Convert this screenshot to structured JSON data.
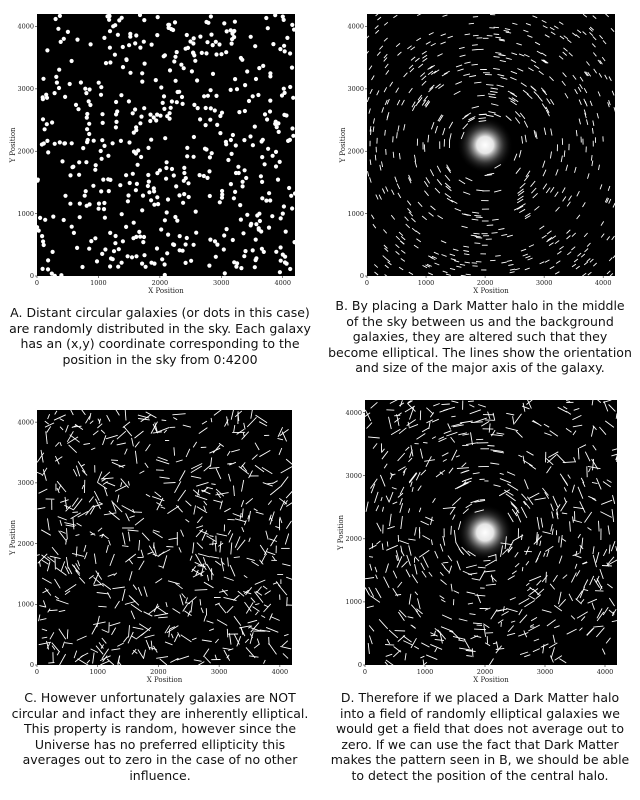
{
  "chart_data": [
    {
      "id": "A",
      "type": "scatter",
      "mark_style": "dots",
      "halo": false,
      "xlabel": "X Position",
      "ylabel": "Y Position",
      "xlim": [
        0,
        4200
      ],
      "ylim": [
        0,
        4200
      ],
      "xticks": [
        "0",
        "1000",
        "2000",
        "3000",
        "4000"
      ],
      "yticks": [
        "0",
        "1000",
        "2000",
        "3000",
        "4000"
      ],
      "caption": "A. Distant circular galaxies (or dots in this case) are randomly distributed in the sky. Each galaxy has an (x,y) coordinate corresponding to the position in the sky from 0:4200"
    },
    {
      "id": "B",
      "type": "scatter",
      "mark_style": "tangential-short",
      "halo": true,
      "halo_center": [
        2000,
        2100
      ],
      "xlabel": "X Position",
      "ylabel": "Y Position",
      "xlim": [
        0,
        4200
      ],
      "ylim": [
        0,
        4200
      ],
      "xticks": [
        "0",
        "1000",
        "2000",
        "3000",
        "4000"
      ],
      "yticks": [
        "0",
        "1000",
        "2000",
        "3000",
        "4000"
      ],
      "caption": "B. By placing a Dark Matter halo in the middle of the sky between us and the background galaxies, they are altered such that they become elliptical. The lines show the orientation and size of the major axis of the galaxy."
    },
    {
      "id": "C",
      "type": "scatter",
      "mark_style": "random-long",
      "halo": false,
      "xlabel": "X Position",
      "ylabel": "Y Position",
      "xlim": [
        0,
        4200
      ],
      "ylim": [
        0,
        4200
      ],
      "xticks": [
        "0",
        "1000",
        "2000",
        "3000",
        "4000"
      ],
      "yticks": [
        "0",
        "1000",
        "2000",
        "3000",
        "4000"
      ],
      "caption": "C. However unfortunately galaxies are NOT circular and infact they are inherently elliptical. This property is random, however since the Universe has no preferred ellipticity this averages out to zero in the case of no other influence."
    },
    {
      "id": "D",
      "type": "scatter",
      "mark_style": "random-plus-tangential",
      "halo": true,
      "halo_center": [
        2000,
        2100
      ],
      "xlabel": "X Position",
      "ylabel": "Y Position",
      "xlim": [
        0,
        4200
      ],
      "ylim": [
        0,
        4200
      ],
      "xticks": [
        "0",
        "1000",
        "2000",
        "3000",
        "4000"
      ],
      "yticks": [
        "0",
        "1000",
        "2000",
        "3000",
        "4000"
      ],
      "caption": "D. Therefore if we placed a Dark Matter halo into a field of randomly elliptical galaxies we would get a field that does not average out to zero. If we can use the fact that Dark Matter makes the pattern seen in B, we should be able to detect the position of the central halo."
    }
  ]
}
